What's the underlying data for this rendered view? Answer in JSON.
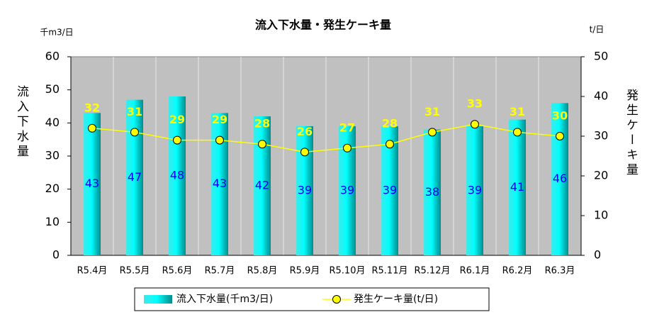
{
  "chart_data": {
    "type": "bar",
    "title": "流入下水量・発生ケーキ量",
    "y_unit": "千m3/日",
    "y2_unit": "t/日",
    "y_label": "流入下水量",
    "y2_label": "発生ケーキ量",
    "categories": [
      "R5.4月",
      "R5.5月",
      "R5.6月",
      "R5.7月",
      "R5.8月",
      "R5.9月",
      "R5.10月",
      "R5.11月",
      "R5.12月",
      "R6.1月",
      "R6.2月",
      "R6.3月"
    ],
    "series": [
      {
        "name": "流入下水量(千m3/日)",
        "type": "bar",
        "color": "#00e0e0",
        "label_color": "#0000ff",
        "values": [
          43,
          47,
          48,
          43,
          42,
          39,
          39,
          39,
          38,
          39,
          41,
          46
        ]
      },
      {
        "name": "発生ケーキ量(t/日)",
        "type": "line",
        "axis": "y2",
        "color": "#ffff00",
        "label_color": "#ffff00",
        "values": [
          32,
          31,
          29,
          29,
          28,
          26,
          27,
          28,
          31,
          33,
          31,
          30
        ]
      }
    ],
    "ylim": [
      0,
      60
    ],
    "yticks": [
      0,
      10,
      20,
      30,
      40,
      50,
      60
    ],
    "y2lim": [
      0,
      50
    ],
    "y2ticks": [
      0,
      10,
      20,
      30,
      40,
      50
    ],
    "plot_background": "#c0c0c0",
    "legend": "bottom"
  }
}
